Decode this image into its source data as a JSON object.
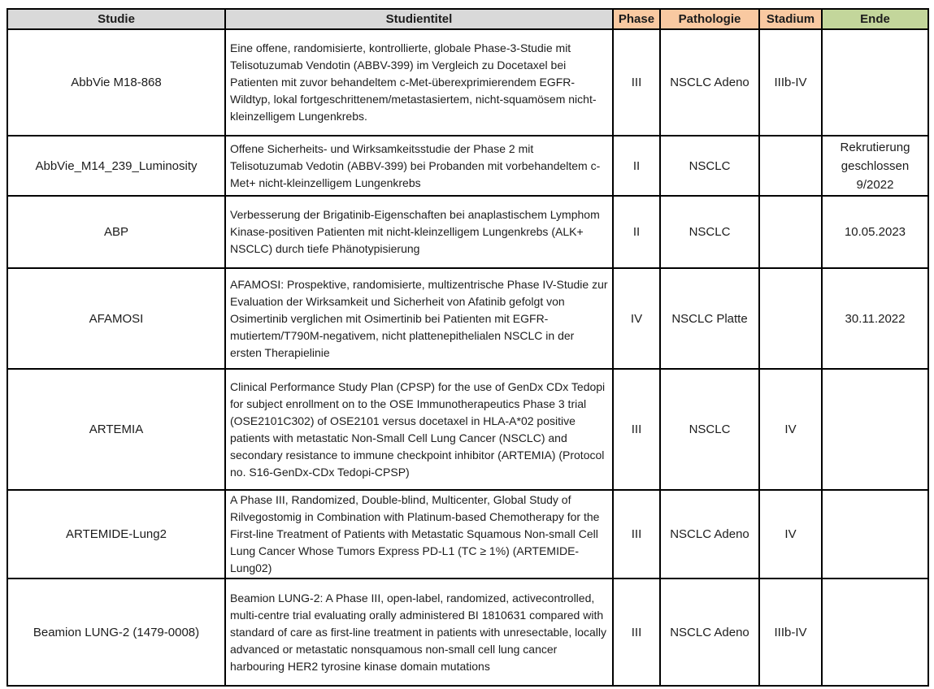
{
  "table": {
    "columns": [
      {
        "key": "studie",
        "label": "Studie"
      },
      {
        "key": "studientitel",
        "label": "Studientitel"
      },
      {
        "key": "phase",
        "label": "Phase"
      },
      {
        "key": "pathologie",
        "label": "Pathologie"
      },
      {
        "key": "stadium",
        "label": "Stadium"
      },
      {
        "key": "ende",
        "label": "Ende"
      }
    ],
    "rows": [
      {
        "studie": "AbbVie M18-868",
        "titel": "Eine offene, randomisierte, kontrollierte, globale Phase-3-Studie mit Telisotuzumab Vendotin (ABBV-399) im Vergleich zu Docetaxel bei Patienten mit zuvor behandeltem c-Met-überexprimierendem EGFR-Wildtyp, lokal fortgeschrittenem/metastasiertem, nicht-squamösem nicht-kleinzelligem Lungenkrebs.",
        "phase": "III",
        "pathologie": "NSCLC Adeno",
        "stadium": "IIIb-IV",
        "ende": ""
      },
      {
        "studie": "AbbVie_M14_239_Luminosity",
        "titel": "Offene Sicherheits- und Wirksamkeitsstudie der Phase 2 mit Telisotuzumab Vedotin (ABBV-399) bei Probanden mit vorbehandeltem c-Met+ nicht-kleinzelligem Lungenkrebs",
        "phase": "II",
        "pathologie": "NSCLC",
        "stadium": "",
        "ende": "Rekrutierung geschlossen 9/2022"
      },
      {
        "studie": "ABP",
        "titel": "Verbesserung der Brigatinib-Eigenschaften bei anaplastischem Lymphom\nKinase-positiven Patienten mit nicht-kleinzelligem Lungenkrebs (ALK+ NSCLC) durch tiefe Phänotypisierung",
        "phase": "II",
        "pathologie": "NSCLC",
        "stadium": "",
        "ende": "10.05.2023"
      },
      {
        "studie": "AFAMOSI",
        "titel": "AFAMOSI: Prospektive, randomisierte, multizentrische Phase IV-Studie zur Evaluation der Wirksamkeit und Sicherheit von Afatinib gefolgt von Osimertinib verglichen mit Osimertinib bei Patienten mit EGFR-mutiertem/T790M-negativem, nicht plattenepithelialen NSCLC in der ersten Therapielinie",
        "phase": "IV",
        "pathologie": "NSCLC Platte",
        "stadium": "",
        "ende": "30.11.2022"
      },
      {
        "studie": "ARTEMIA",
        "titel": "Clinical Performance Study Plan (CPSP) for the use of GenDx CDx Tedopi for subject enrollment on to the OSE Immunotherapeutics Phase 3 trial (OSE2101C302) of OSE2101 versus docetaxel in HLA-A*02 positive patients with metastatic Non-Small Cell Lung Cancer (NSCLC) and secondary resistance to immune checkpoint inhibitor (ARTEMIA) (Protocol no. S16-GenDx-CDx Tedopi-CPSP)",
        "phase": "III",
        "pathologie": "NSCLC",
        "stadium": "IV",
        "ende": ""
      },
      {
        "studie": "ARTEMIDE-Lung2",
        "titel": "A Phase III, Randomized, Double-blind, Multicenter, Global Study of Rilvegostomig in Combination with Platinum-based Chemotherapy for the First-line Treatment of Patients with Metastatic Squamous Non-small Cell Lung Cancer Whose Tumors Express PD-L1 (TC ≥ 1%) (ARTEMIDE-Lung02)",
        "phase": "III",
        "pathologie": "NSCLC Adeno",
        "stadium": "IV",
        "ende": ""
      },
      {
        "studie": "Beamion LUNG-2 (1479-0008)",
        "titel": "Beamion LUNG-2: A Phase III, open-label, randomized, activecontrolled, multi-centre trial evaluating orally administered BI 1810631 compared with standard of care as first-line treatment in patients with unresectable, locally advanced or metastatic nonsquamous non-small cell lung cancer harbouring HER2 tyrosine kinase domain mutations",
        "phase": "III",
        "pathologie": "NSCLC Adeno",
        "stadium": "IIIb-IV",
        "ende": ""
      }
    ]
  },
  "colors": {
    "header_gray": "#d9d9d9",
    "header_peach": "#f9c9a1",
    "header_green": "#c3d69b",
    "border": "#000000"
  }
}
